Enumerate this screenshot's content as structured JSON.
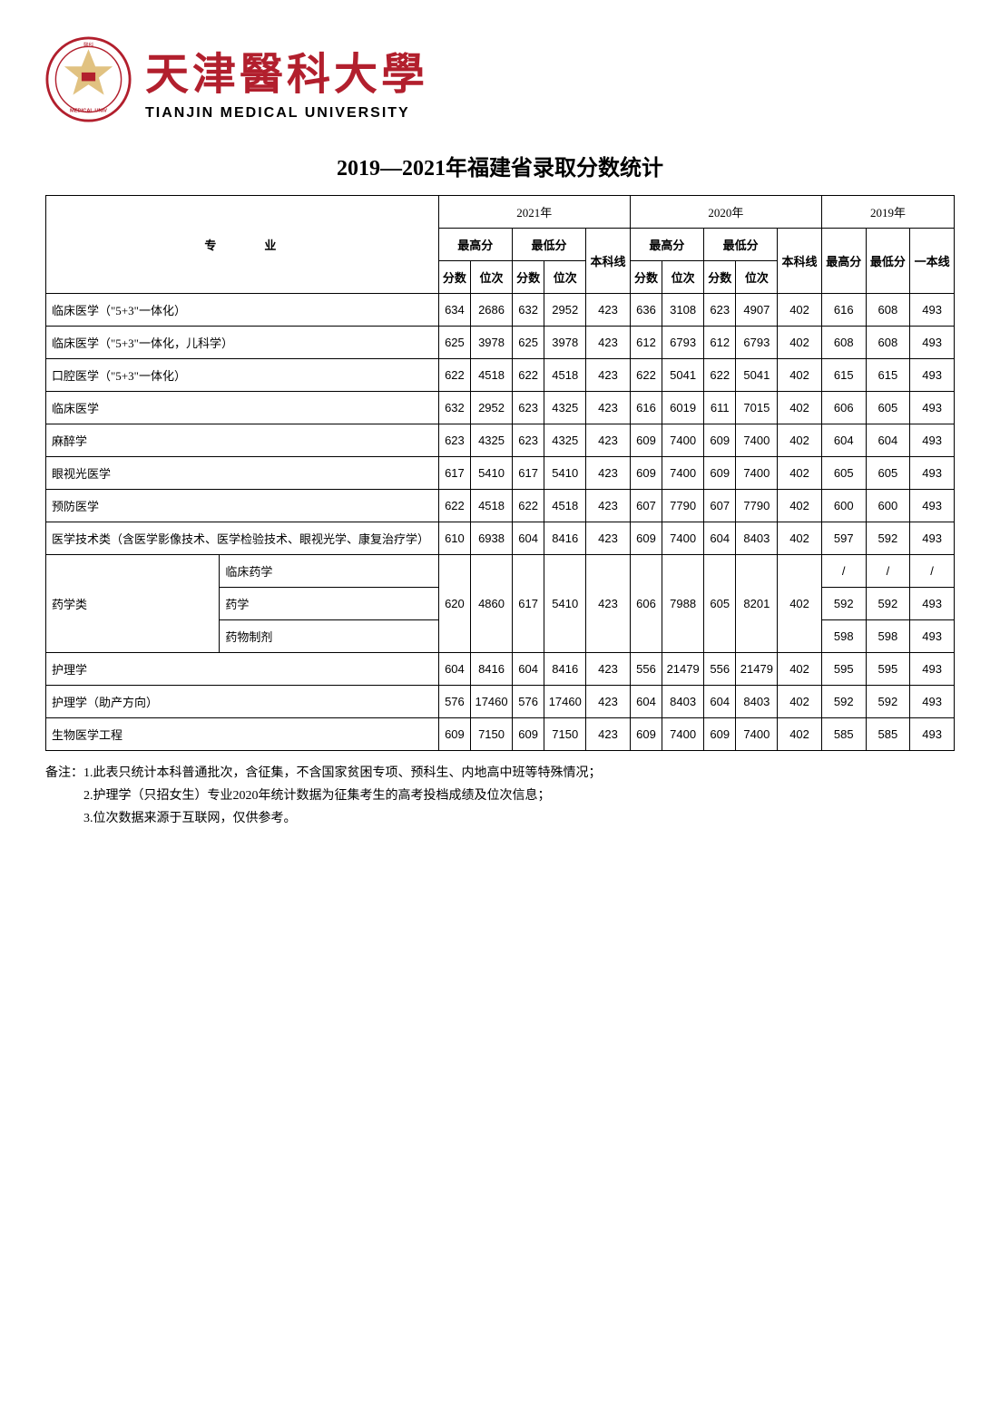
{
  "header": {
    "cn_name": "天津醫科大學",
    "en_name": "TIANJIN MEDICAL UNIVERSITY"
  },
  "title": "2019—2021年福建省录取分数统计",
  "table": {
    "headers": {
      "major": "专　业",
      "year_2021": "2021年",
      "year_2020": "2020年",
      "year_2019": "2019年",
      "max_score": "最高分",
      "min_score": "最低分",
      "line": "本科线",
      "score": "分数",
      "rank": "位次",
      "max": "最高分",
      "min": "最低分",
      "tier1": "一本线"
    },
    "rows": [
      {
        "major": "临床医学（\"5+3\"一体化）",
        "d": [
          "634",
          "2686",
          "632",
          "2952",
          "423",
          "636",
          "3108",
          "623",
          "4907",
          "402",
          "616",
          "608",
          "493"
        ]
      },
      {
        "major": "临床医学（\"5+3\"一体化，儿科学）",
        "d": [
          "625",
          "3978",
          "625",
          "3978",
          "423",
          "612",
          "6793",
          "612",
          "6793",
          "402",
          "608",
          "608",
          "493"
        ]
      },
      {
        "major": "口腔医学（\"5+3\"一体化）",
        "d": [
          "622",
          "4518",
          "622",
          "4518",
          "423",
          "622",
          "5041",
          "622",
          "5041",
          "402",
          "615",
          "615",
          "493"
        ]
      },
      {
        "major": "临床医学",
        "d": [
          "632",
          "2952",
          "623",
          "4325",
          "423",
          "616",
          "6019",
          "611",
          "7015",
          "402",
          "606",
          "605",
          "493"
        ]
      },
      {
        "major": "麻醉学",
        "d": [
          "623",
          "4325",
          "623",
          "4325",
          "423",
          "609",
          "7400",
          "609",
          "7400",
          "402",
          "604",
          "604",
          "493"
        ]
      },
      {
        "major": "眼视光医学",
        "d": [
          "617",
          "5410",
          "617",
          "5410",
          "423",
          "609",
          "7400",
          "609",
          "7400",
          "402",
          "605",
          "605",
          "493"
        ]
      },
      {
        "major": "预防医学",
        "d": [
          "622",
          "4518",
          "622",
          "4518",
          "423",
          "607",
          "7790",
          "607",
          "7790",
          "402",
          "600",
          "600",
          "493"
        ]
      },
      {
        "major": "医学技术类（含医学影像技术、医学检验技术、眼视光学、康复治疗学）",
        "d": [
          "610",
          "6938",
          "604",
          "8416",
          "423",
          "609",
          "7400",
          "604",
          "8403",
          "402",
          "597",
          "592",
          "493"
        ]
      }
    ],
    "pharmacy_group": {
      "group_label": "药学类",
      "shared": [
        "620",
        "4860",
        "617",
        "5410",
        "423",
        "606",
        "7988",
        "605",
        "8201",
        "402"
      ],
      "subs": [
        {
          "name": "临床药学",
          "tail": [
            "/",
            "/",
            "/"
          ]
        },
        {
          "name": "药学",
          "tail": [
            "592",
            "592",
            "493"
          ]
        },
        {
          "name": "药物制剂",
          "tail": [
            "598",
            "598",
            "493"
          ]
        }
      ]
    },
    "rows_after": [
      {
        "major": "护理学",
        "d": [
          "604",
          "8416",
          "604",
          "8416",
          "423",
          "556",
          "21479",
          "556",
          "21479",
          "402",
          "595",
          "595",
          "493"
        ]
      },
      {
        "major": "护理学（助产方向）",
        "d": [
          "576",
          "17460",
          "576",
          "17460",
          "423",
          "604",
          "8403",
          "604",
          "8403",
          "402",
          "592",
          "592",
          "493"
        ]
      },
      {
        "major": "生物医学工程",
        "d": [
          "609",
          "7150",
          "609",
          "7150",
          "423",
          "609",
          "7400",
          "609",
          "7400",
          "402",
          "585",
          "585",
          "493"
        ]
      }
    ]
  },
  "notes": {
    "line1": "备注：1.此表只统计本科普通批次，含征集，不含国家贫困专项、预科生、内地高中班等特殊情况；",
    "line2": "　　　2.护理学（只招女生）专业2020年统计数据为征集考生的高考投档成绩及位次信息；",
    "line3": "　　　3.位次数据来源于互联网，仅供参考。"
  },
  "colors": {
    "logo_red": "#b21f2d",
    "logo_gold": "#d4a84b",
    "text": "#000000",
    "bg": "#ffffff",
    "border": "#000000"
  }
}
